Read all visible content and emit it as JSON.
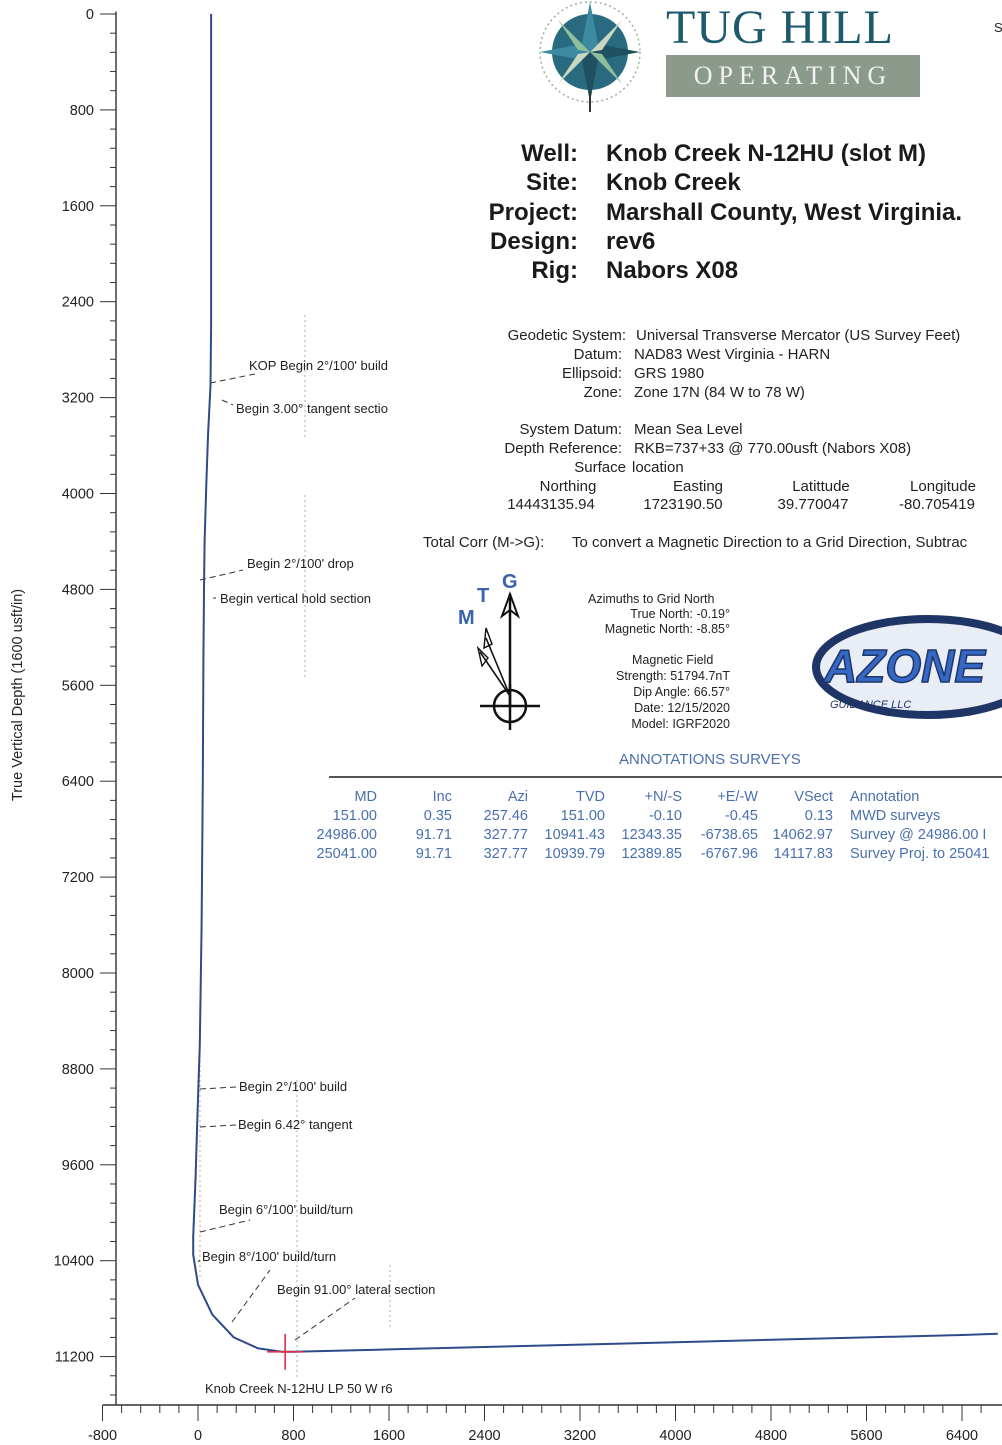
{
  "header": {
    "logo_top": "TUG HILL",
    "logo_bottom": "OPERATING",
    "edge_char": "S",
    "well_label": "Well:",
    "well_value": "Knob Creek N-12HU (slot M)",
    "site_label": "Site:",
    "site_value": "Knob Creek",
    "project_label": "Project:",
    "project_value": "Marshall County, West Virginia.",
    "design_label": "Design:",
    "design_value": "rev6",
    "rig_label": "Rig:",
    "rig_value": "Nabors X08"
  },
  "geodetic": {
    "system_label": "Geodetic System:",
    "system_value": "Universal Transverse Mercator (US Survey Feet)",
    "datum_label": "Datum:",
    "datum_value": "NAD83 West Virginia - HARN",
    "ellipsoid_label": "Ellipsoid:",
    "ellipsoid_value": "GRS 1980",
    "zone_label": "Zone:",
    "zone_value": "Zone 17N (84 W to 78 W)",
    "sys_datum_label": "System Datum:",
    "sys_datum_value": "Mean Sea Level",
    "depth_ref_label": "Depth Reference:",
    "depth_ref_value": "RKB=737+33 @ 770.00usft (Nabors X08)",
    "surface_label": "Surface",
    "surface_value": "location",
    "northing_label": "Northing",
    "northing_value": "14443135.94",
    "easting_label": "Easting",
    "easting_value": "1723190.50",
    "lat_label": "Latittude",
    "lat_value": "39.770047",
    "lon_label": "Longitude",
    "lon_value": "-80.705419",
    "total_corr_label": "Total Corr (M->G):",
    "total_corr_value": "To convert a Magnetic Direction to a Grid Direction, Subtrac"
  },
  "north_arrow": {
    "t_label": "T",
    "g_label": "G",
    "m_label": "M",
    "colors": {
      "letters": "#3a63ad"
    }
  },
  "azimuths": {
    "title": "Azimuths to Grid North",
    "true_north": "True North: -0.19°",
    "mag_north": "Magnetic North: -8.85°",
    "field_title": "Magnetic Field",
    "strength": "Strength: 51794.7nT",
    "dip": "Dip Angle: 66.57°",
    "date": "Date: 12/15/2020",
    "model": "Model: IGRF2020"
  },
  "badge": {
    "text_big": "AZONE",
    "text_small": "GUIDANCE LLC",
    "colors": {
      "ring": "#1f3566",
      "fill": "#3568c4"
    }
  },
  "annotations_surveys": {
    "title": "ANNOTATIONS  SURVEYS",
    "columns": [
      "MD",
      "Inc",
      "Azi",
      "TVD",
      "+N/-S",
      "+E/-W",
      "VSect",
      "Annotation"
    ],
    "rows": [
      [
        "151.00",
        "0.35",
        "257.46",
        "151.00",
        "-0.10",
        "-0.45",
        "0.13",
        "MWD surveys"
      ],
      [
        "24986.00",
        "91.71",
        "327.77",
        "10941.43",
        "12343.35",
        "-6738.65",
        "14062.97",
        "Survey @ 24986.00 I"
      ],
      [
        "25041.00",
        "91.71",
        "327.77",
        "10939.79",
        "12389.85",
        "-6767.96",
        "14117.83",
        "Survey Proj. to 25041"
      ]
    ]
  },
  "chart_data": {
    "type": "line",
    "title": "",
    "xlabel": "",
    "ylabel": "True Vertical Depth (1600 usft/in)",
    "x_ticks": [
      -800,
      0,
      800,
      1600,
      2400,
      3200,
      4000,
      4800,
      5600,
      6400
    ],
    "y_ticks": [
      0,
      800,
      1600,
      2400,
      3200,
      4000,
      4800,
      5600,
      6400,
      7200,
      8000,
      8800,
      9600,
      10400,
      11200
    ],
    "xlim": [
      -800,
      6700
    ],
    "ylim": [
      11600,
      -20
    ],
    "y_inverted": true,
    "grid": false,
    "series": [
      {
        "color": "#2e4a8a",
        "x": [
          110,
          110,
          105,
          85,
          70,
          55,
          50,
          45,
          40,
          30,
          15,
          -5,
          -20,
          -40,
          -40,
          0,
          120,
          300,
          500,
          700,
          800,
          1600,
          2400,
          3200,
          4000,
          4800,
          5600,
          6400,
          6700
        ],
        "y": [
          0,
          2600,
          3100,
          3500,
          3900,
          4400,
          4800,
          5400,
          6400,
          7600,
          8600,
          9200,
          9700,
          10200,
          10350,
          10600,
          10850,
          11040,
          11130,
          11160,
          11160,
          11140,
          11120,
          11100,
          11080,
          11060,
          11040,
          11020,
          11010
        ]
      }
    ],
    "annotations": [
      {
        "text": "KOP Begin 2°/100' build",
        "x": 420,
        "y": 3000
      },
      {
        "text": "Begin 3.00° tangent sectio",
        "x": 300,
        "y": 3100
      },
      {
        "text": "Begin 2°/100' drop",
        "x": 420,
        "y": 4650
      },
      {
        "text": "Begin vertical hold section",
        "x": 160,
        "y": 4830
      },
      {
        "text": "Begin 2°/100' build",
        "x": 300,
        "y": 8950
      },
      {
        "text": "Begin 6.42° tangent",
        "x": 300,
        "y": 9250
      },
      {
        "text": "Begin 6°/100' build/turn",
        "x": 160,
        "y": 9980
      },
      {
        "text": "Begin 8°/100' build/turn",
        "x": 30,
        "y": 10340
      },
      {
        "text": "Begin 91.00° lateral section",
        "x": 630,
        "y": 10660
      },
      {
        "text": "Knob Creek N-12HU LP 50 W r6",
        "x": 60,
        "y": 11420
      }
    ],
    "target_marker": {
      "x": 730,
      "y": 11160,
      "color": "#e0304a"
    }
  }
}
